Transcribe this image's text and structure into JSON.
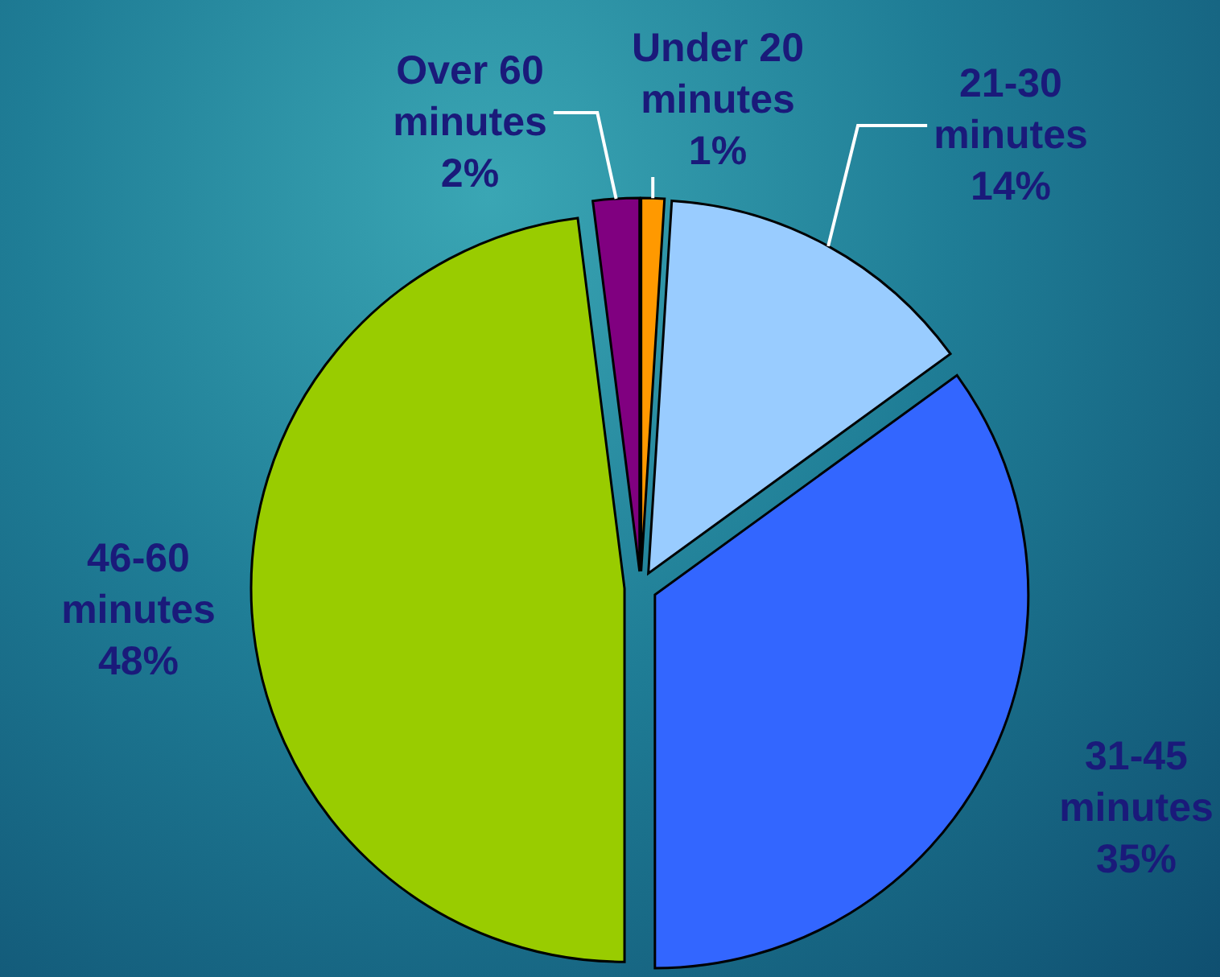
{
  "chart_data": {
    "type": "pie",
    "categories": [
      "Under 20 minutes",
      "21-30 minutes",
      "31-45 minutes",
      "46-60 minutes",
      "Over 60 minutes"
    ],
    "values": [
      1,
      14,
      35,
      48,
      2
    ],
    "value_labels": [
      "1%",
      "14%",
      "35%",
      "48%",
      "2%"
    ],
    "colors": [
      "#ff9900",
      "#99ccff",
      "#3366ff",
      "#99cc00",
      "#800080"
    ]
  }
}
